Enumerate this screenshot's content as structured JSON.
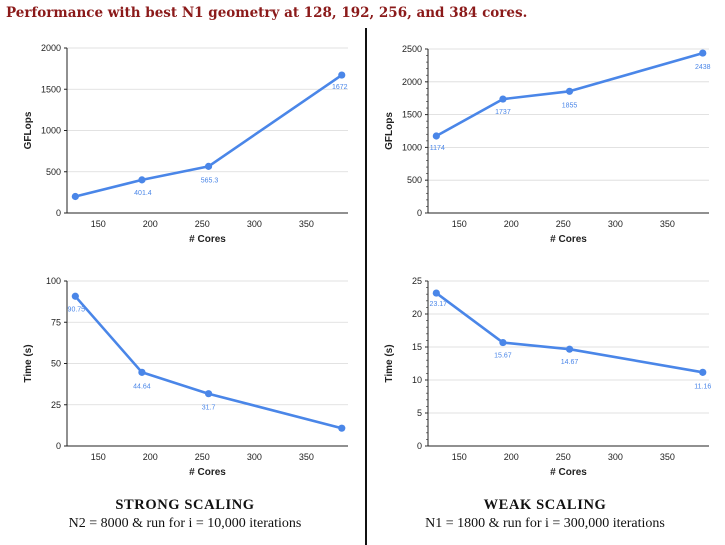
{
  "title": "Performance with best N1 geometry at 128, 192, 256, and 384 cores.",
  "captions": {
    "strong": {
      "title": "STRONG SCALING",
      "subtitle": "N2 = 8000 & run for i = 10,000 iterations"
    },
    "weak": {
      "title": "WEAK SCALING",
      "subtitle": "N1 = 1800 & run for i = 300,000 iterations"
    }
  },
  "chart_data": [
    {
      "id": "strong-gflops",
      "type": "line",
      "color": "#4a86e8",
      "xlabel": "# Cores",
      "ylabel": "GFLops",
      "x": [
        128,
        192,
        256,
        384
      ],
      "values": [
        200,
        401.4,
        565.3,
        1672
      ],
      "data_labels": [
        "",
        "401.4",
        "565.3",
        "1672"
      ],
      "xlim": [
        120,
        390
      ],
      "ylim": [
        0,
        2000
      ],
      "xticks": [
        150,
        200,
        250,
        300,
        350
      ],
      "yticks": [
        0,
        500,
        1000,
        1500,
        2000
      ],
      "grid": true,
      "y_minor_ticks": false
    },
    {
      "id": "weak-gflops",
      "type": "line",
      "color": "#4a86e8",
      "xlabel": "# Cores",
      "ylabel": "GFLops",
      "x": [
        128,
        192,
        256,
        384
      ],
      "values": [
        1174,
        1737,
        1855,
        2438
      ],
      "data_labels": [
        "1174",
        "1737",
        "1855",
        "2438"
      ],
      "xlim": [
        120,
        390
      ],
      "ylim": [
        0,
        2500
      ],
      "xticks": [
        150,
        200,
        250,
        300,
        350
      ],
      "yticks": [
        0,
        500,
        1000,
        1500,
        2000,
        2500
      ],
      "grid": true,
      "y_minor_ticks": true
    },
    {
      "id": "strong-time",
      "type": "line",
      "color": "#4a86e8",
      "xlabel": "# Cores",
      "ylabel": "Time (s)",
      "x": [
        128,
        192,
        256,
        384
      ],
      "values": [
        90.75,
        44.64,
        31.7,
        10.8
      ],
      "data_labels": [
        "90.75",
        "44.64",
        "31.7",
        ""
      ],
      "xlim": [
        120,
        390
      ],
      "ylim": [
        0,
        100
      ],
      "xticks": [
        150,
        200,
        250,
        300,
        350
      ],
      "yticks": [
        0,
        25,
        50,
        75,
        100
      ],
      "grid": true,
      "y_minor_ticks": false
    },
    {
      "id": "weak-time",
      "type": "line",
      "color": "#4a86e8",
      "xlabel": "# Cores",
      "ylabel": "Time (s)",
      "x": [
        128,
        192,
        256,
        384
      ],
      "values": [
        23.17,
        15.67,
        14.67,
        11.16
      ],
      "data_labels": [
        "23.17",
        "15.67",
        "14.67",
        "11.16"
      ],
      "xlim": [
        120,
        390
      ],
      "ylim": [
        0,
        25
      ],
      "xticks": [
        150,
        200,
        250,
        300,
        350
      ],
      "yticks": [
        0,
        5,
        10,
        15,
        20,
        25
      ],
      "grid": true,
      "y_minor_ticks": true
    }
  ]
}
